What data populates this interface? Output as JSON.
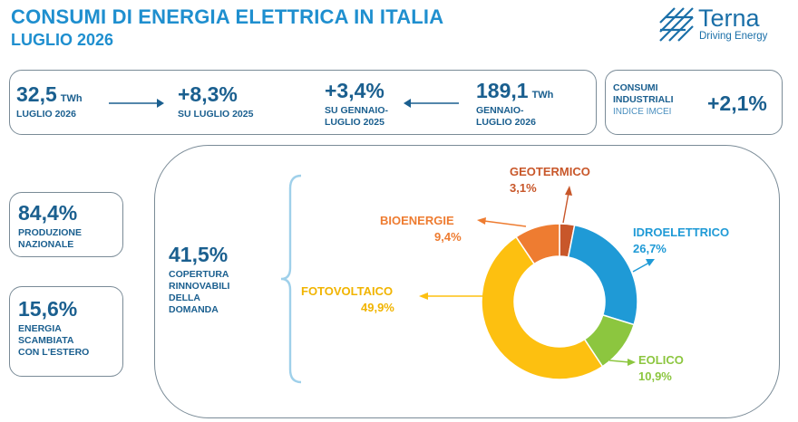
{
  "header": {
    "title": "CONSUMI DI ENERGIA ELETTRICA IN ITALIA",
    "subtitle": "LUGLIO 2026",
    "logo_name": "Terna",
    "logo_tagline": "Driving Energy"
  },
  "kpis": {
    "monthly": {
      "value": "32,5",
      "unit": "TWh",
      "label": "LUGLIO 2026"
    },
    "monthly_change": {
      "value": "+8,3%",
      "label": "SU LUGLIO 2025"
    },
    "ytd_change": {
      "value": "+3,4%",
      "label_lines": [
        "SU GENNAIO-",
        "LUGLIO 2025"
      ]
    },
    "ytd": {
      "value": "189,1",
      "unit": "TWh",
      "label_lines": [
        "GENNAIO-",
        "LUGLIO 2026"
      ]
    },
    "industrial": {
      "label_lines": [
        "CONSUMI",
        "INDUSTRIALI"
      ],
      "index_label": "INDICE IMCEI",
      "value": "+2,1%"
    }
  },
  "side": {
    "production": {
      "value": "84,4%",
      "label_lines": [
        "PRODUZIONE",
        "NAZIONALE"
      ]
    },
    "exchange": {
      "value": "15,6%",
      "label_lines": [
        "ENERGIA",
        "SCAMBIATA",
        "CON L'ESTERO"
      ]
    }
  },
  "renewables": {
    "value": "41,5%",
    "label_lines": [
      "COPERTURA",
      "RINNOVABILI",
      "DELLA",
      "DOMANDA"
    ]
  },
  "colors": {
    "geotermico": "#c8572a",
    "idroelettrico": "#1f9ad6",
    "eolico": "#8cc63f",
    "fotovoltaico": "#fdc010",
    "bioenergie": "#ee7c31"
  },
  "chart_data": {
    "type": "pie",
    "donut": true,
    "categories": [
      "GEOTERMICO",
      "IDROELETTRICO",
      "EOLICO",
      "FOTOVOLTAICO",
      "BIOENERGIE"
    ],
    "values": [
      3.1,
      26.7,
      10.9,
      49.9,
      9.4
    ],
    "value_labels": [
      "3,1%",
      "26,7%",
      "10,9%",
      "49,9%",
      "9,4%"
    ],
    "colors": [
      "#c8572a",
      "#1f9ad6",
      "#8cc63f",
      "#fdc010",
      "#ee7c31"
    ]
  }
}
